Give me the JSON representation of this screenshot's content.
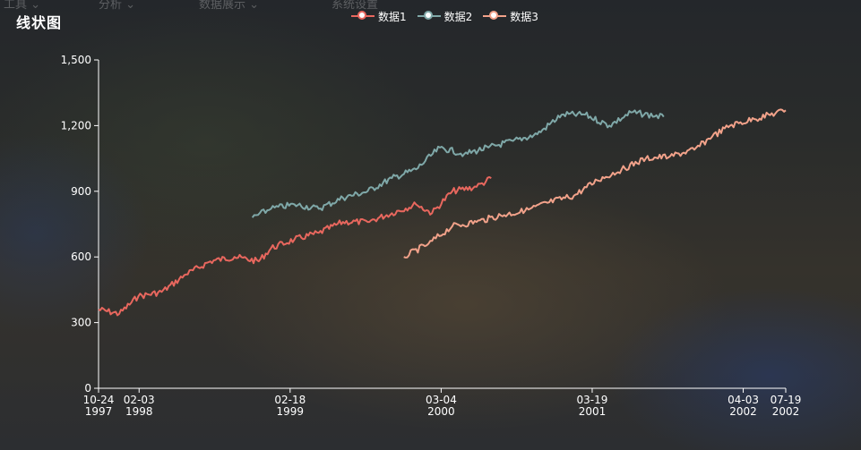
{
  "toolbar_ghost": {
    "items": [
      {
        "label": "工具 ⌄",
        "icon": "tool-icon"
      },
      {
        "label": "分析 ⌄",
        "icon": "analysis-icon"
      },
      {
        "label": "数据展示 ⌄",
        "icon": "bar-chart-icon"
      },
      {
        "label": "系统设置",
        "icon": "layers-icon"
      }
    ]
  },
  "colors": {
    "series1": "#e8675e",
    "series2": "#7fa8a8",
    "series3": "#f2a28a",
    "axis": "#ffffff"
  },
  "chart_data": {
    "type": "line",
    "title": "线状图",
    "xlabel": "",
    "ylabel": "",
    "ylim": [
      0,
      1500
    ],
    "yticks": [
      0,
      300,
      600,
      900,
      1200,
      1500
    ],
    "ytick_labels": [
      "0",
      "300",
      "600",
      "900",
      "1,200",
      "1,500"
    ],
    "xlim": [
      "1997-10-24",
      "2002-07-19"
    ],
    "xticks": [
      "1997-10-24",
      "1998-02-03",
      "1999-02-18",
      "2000-03-04",
      "2001-03-19",
      "2002-04-03",
      "2002-07-19"
    ],
    "xtick_labels": [
      {
        "date": "10-24",
        "year": "1997"
      },
      {
        "date": "02-03",
        "year": "1998"
      },
      {
        "date": "02-18",
        "year": "1999"
      },
      {
        "date": "03-04",
        "year": "2000"
      },
      {
        "date": "03-19",
        "year": "2001"
      },
      {
        "date": "04-03",
        "year": "2002"
      },
      {
        "date": "07-19",
        "year": "2002"
      }
    ],
    "legend_position": "top-center",
    "grid": false,
    "series": [
      {
        "name": "数据1",
        "x": [
          "1997-10-24",
          "1997-12-15",
          "1998-02-01",
          "1998-04-01",
          "1998-06-01",
          "1998-08-01",
          "1998-10-01",
          "1998-12-01",
          "1999-01-01",
          "1999-03-01",
          "1999-05-01",
          "1999-07-01",
          "1999-09-01",
          "1999-11-01",
          "2000-01-01",
          "2000-02-10",
          "2000-04-01",
          "2000-06-01",
          "2000-07-08"
        ],
        "values": [
          360,
          340,
          420,
          440,
          520,
          580,
          600,
          580,
          640,
          680,
          710,
          760,
          760,
          800,
          840,
          800,
          900,
          920,
          960
        ]
      },
      {
        "name": "数据2",
        "x": [
          "1998-11-15",
          "1999-01-01",
          "1999-03-01",
          "1999-05-01",
          "1999-07-01",
          "1999-09-01",
          "1999-11-01",
          "2000-01-01",
          "2000-03-01",
          "2000-05-01",
          "2000-07-01",
          "2000-09-01",
          "2000-11-01",
          "2001-01-01",
          "2001-03-01",
          "2001-05-01",
          "2001-06-25",
          "2001-09-15"
        ],
        "values": [
          780,
          820,
          840,
          820,
          870,
          900,
          960,
          1000,
          1100,
          1070,
          1100,
          1130,
          1160,
          1250,
          1250,
          1200,
          1260,
          1240
        ]
      },
      {
        "name": "数据3",
        "x": [
          "1999-12-01",
          "2000-02-01",
          "2000-04-01",
          "2000-06-01",
          "2000-08-01",
          "2000-10-01",
          "2000-12-01",
          "2001-02-01",
          "2001-04-01",
          "2001-06-01",
          "2001-08-01",
          "2001-10-01",
          "2001-12-01",
          "2002-01-15",
          "2002-03-01",
          "2002-05-01",
          "2002-07-19"
        ],
        "values": [
          600,
          660,
          740,
          760,
          790,
          810,
          850,
          880,
          950,
          1000,
          1050,
          1060,
          1090,
          1150,
          1200,
          1230,
          1270
        ]
      }
    ]
  }
}
